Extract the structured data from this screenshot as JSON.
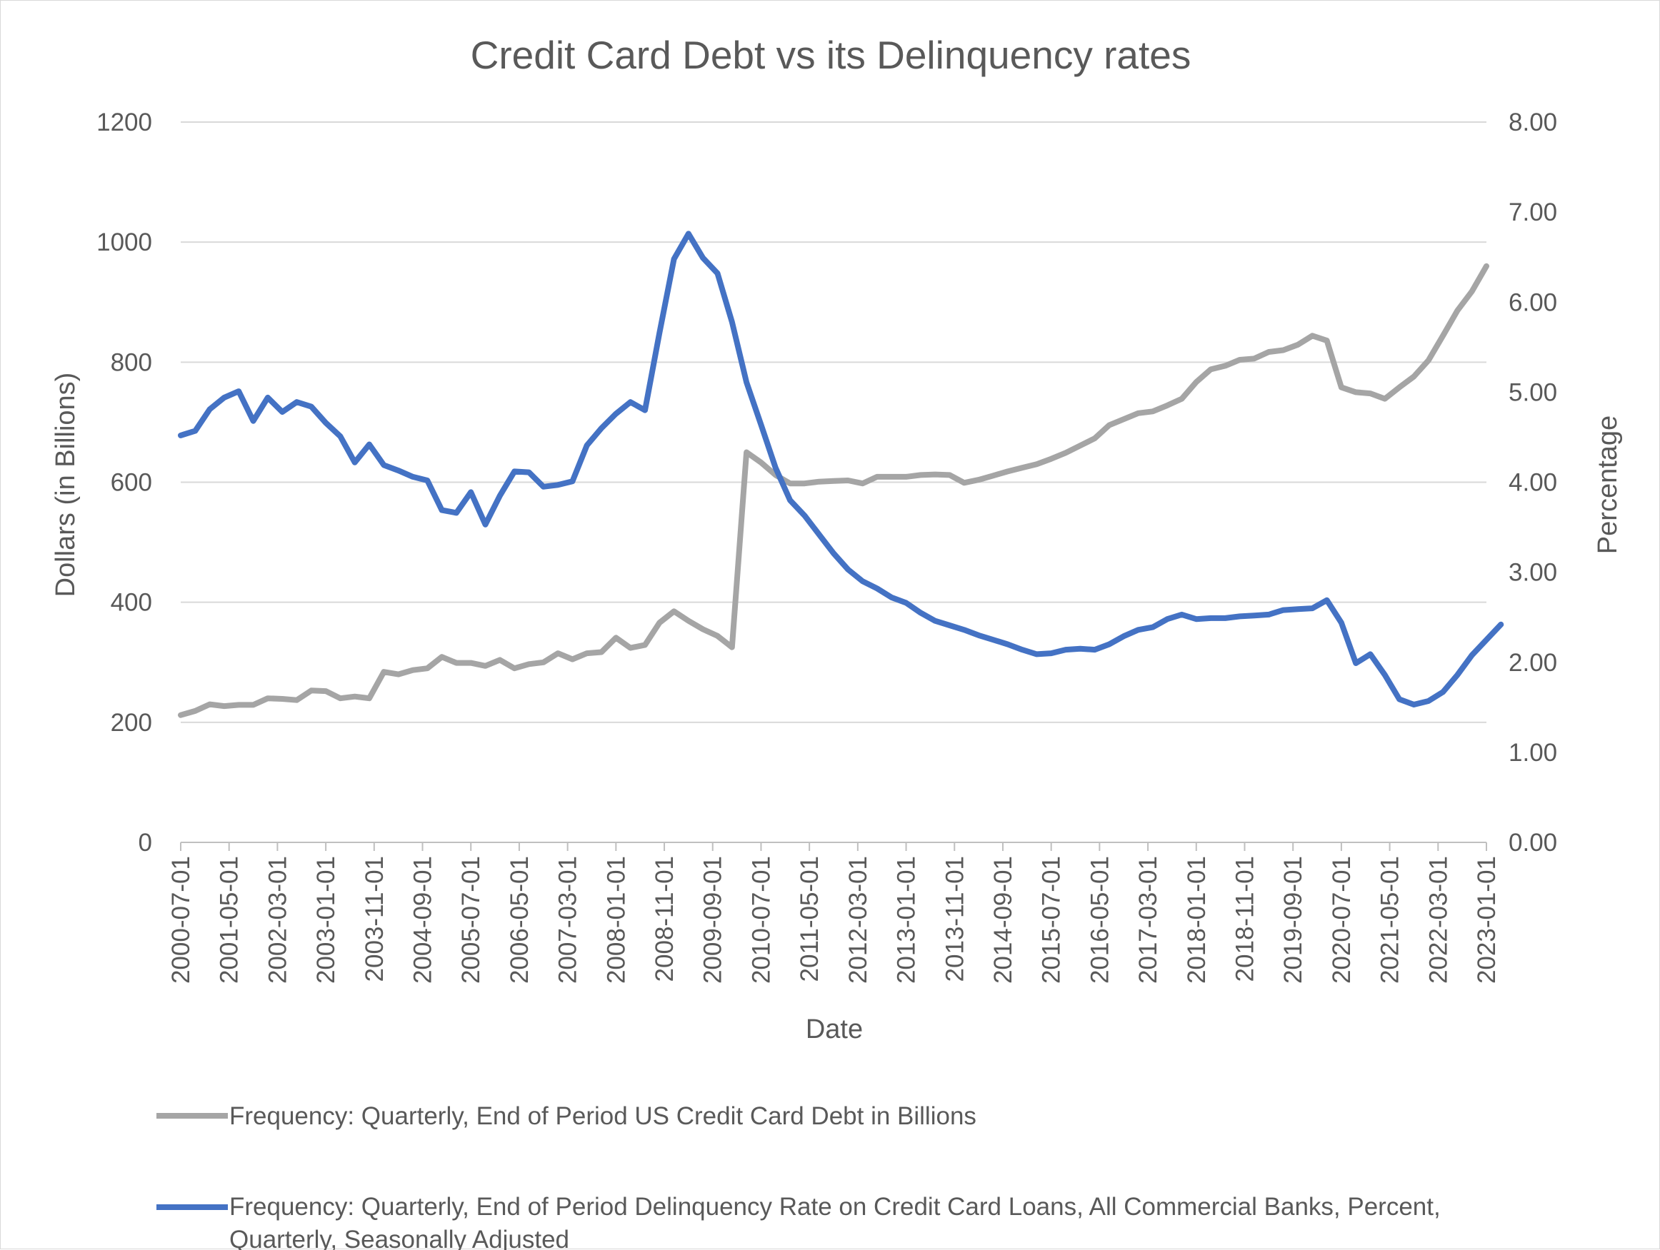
{
  "chart_data": {
    "type": "line",
    "title": "Credit Card Debt vs its Delinquency rates",
    "xlabel": "Date",
    "ylabel": "Dollars (in Billions)",
    "y2label": "Percentage",
    "ylim": [
      0,
      1200
    ],
    "y2lim": [
      0,
      8
    ],
    "yticks": [
      "0",
      "200",
      "400",
      "600",
      "800",
      "1000",
      "1200"
    ],
    "y2ticks": [
      "0.00",
      "1.00",
      "2.00",
      "3.00",
      "4.00",
      "5.00",
      "6.00",
      "7.00",
      "8.00"
    ],
    "grid": true,
    "legend_position": "bottom",
    "x_tick_labels": [
      "2000-07-01",
      "2001-05-01",
      "2002-03-01",
      "2003-01-01",
      "2003-11-01",
      "2004-09-01",
      "2005-07-01",
      "2006-05-01",
      "2007-03-01",
      "2008-01-01",
      "2008-11-01",
      "2009-09-01",
      "2010-07-01",
      "2011-05-01",
      "2012-03-01",
      "2013-01-01",
      "2013-11-01",
      "2014-09-01",
      "2015-07-01",
      "2016-05-01",
      "2017-03-01",
      "2018-01-01",
      "2018-11-01",
      "2019-09-01",
      "2020-07-01",
      "2021-05-01",
      "2022-03-01",
      "2023-01-01"
    ],
    "x_start": "2000-07-01",
    "x_step_months": 3,
    "series": [
      {
        "name": "Frequency: Quarterly, End of Period US Credit Card Debt in Billions",
        "axis": "left",
        "color": "#a5a5a5",
        "values": [
          212,
          219,
          230,
          227,
          229,
          229,
          240,
          239,
          237,
          253,
          252,
          240,
          243,
          240,
          284,
          280,
          287,
          290,
          309,
          299,
          299,
          294,
          304,
          290,
          297,
          300,
          315,
          305,
          315,
          317,
          341,
          324,
          329,
          366,
          385,
          369,
          355,
          344,
          325,
          650,
          633,
          612,
          598,
          598,
          601,
          602,
          603,
          598,
          609,
          609,
          609,
          612,
          613,
          612,
          599,
          604,
          611,
          618,
          624,
          630,
          639,
          649,
          661,
          673,
          695,
          705,
          715,
          718,
          728,
          739,
          767,
          788,
          794,
          804,
          806,
          817,
          820,
          829,
          844,
          836,
          758,
          750,
          748,
          739,
          758,
          776,
          803,
          844,
          886,
          918,
          960
        ]
      },
      {
        "name": "Frequency: Quarterly, End of Period Delinquency Rate on Credit Card Loans, All Commercial Banks, Percent, Quarterly, Seasonally Adjusted",
        "axis": "right",
        "color": "#4472c4",
        "values": [
          4.52,
          4.57,
          4.81,
          4.94,
          5.01,
          4.68,
          4.94,
          4.78,
          4.89,
          4.84,
          4.66,
          4.51,
          4.22,
          4.42,
          4.19,
          4.13,
          4.06,
          4.02,
          3.69,
          3.66,
          3.89,
          3.53,
          3.85,
          4.12,
          4.11,
          3.95,
          3.97,
          4.01,
          4.41,
          4.6,
          4.76,
          4.89,
          4.8,
          5.66,
          6.48,
          6.76,
          6.49,
          6.32,
          5.78,
          5.11,
          4.64,
          4.16,
          3.8,
          3.63,
          3.42,
          3.21,
          3.03,
          2.9,
          2.82,
          2.72,
          2.66,
          2.55,
          2.46,
          2.41,
          2.36,
          2.3,
          2.25,
          2.2,
          2.14,
          2.09,
          2.1,
          2.14,
          2.15,
          2.14,
          2.2,
          2.29,
          2.36,
          2.39,
          2.48,
          2.53,
          2.48,
          2.49,
          2.49,
          2.51,
          2.52,
          2.53,
          2.58,
          2.59,
          2.6,
          2.69,
          2.44,
          1.99,
          2.09,
          1.86,
          1.59,
          1.53,
          1.57,
          1.67,
          1.86,
          2.08,
          2.25,
          2.42
        ]
      }
    ]
  }
}
